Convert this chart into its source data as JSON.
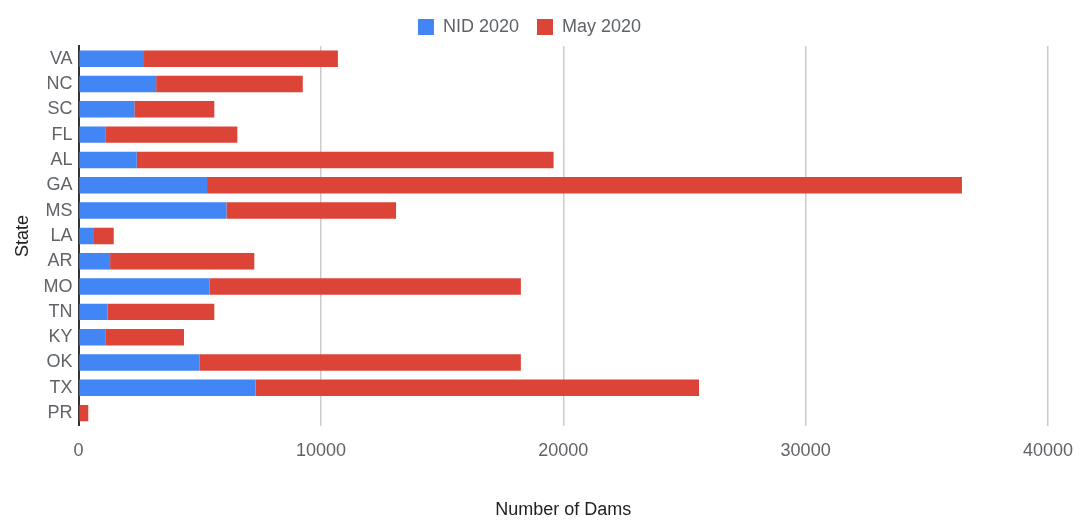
{
  "chart_data": {
    "type": "bar",
    "orientation": "horizontal",
    "stacked": true,
    "xlabel": "Number of Dams",
    "ylabel": "State",
    "categories": [
      "VA",
      "NC",
      "SC",
      "FL",
      "AL",
      "GA",
      "MS",
      "LA",
      "AR",
      "MO",
      "TN",
      "KY",
      "OK",
      "TX",
      "PR"
    ],
    "series": [
      {
        "name": "NID 2020",
        "color": "#4285f4",
        "values": [
          2700,
          3200,
          2300,
          1100,
          2400,
          5300,
          6100,
          600,
          1300,
          5400,
          1200,
          1100,
          5000,
          7300,
          0
        ]
      },
      {
        "name": "May 2020",
        "color": "#db4437",
        "values": [
          8000,
          6050,
          3300,
          5450,
          17200,
          31150,
          7000,
          850,
          5950,
          12850,
          4400,
          3250,
          13250,
          18300,
          400
        ]
      }
    ],
    "xlim": [
      0,
      40000
    ],
    "xticks": [
      0,
      10000,
      20000,
      30000,
      40000
    ],
    "grid": "x",
    "legend": "top"
  }
}
